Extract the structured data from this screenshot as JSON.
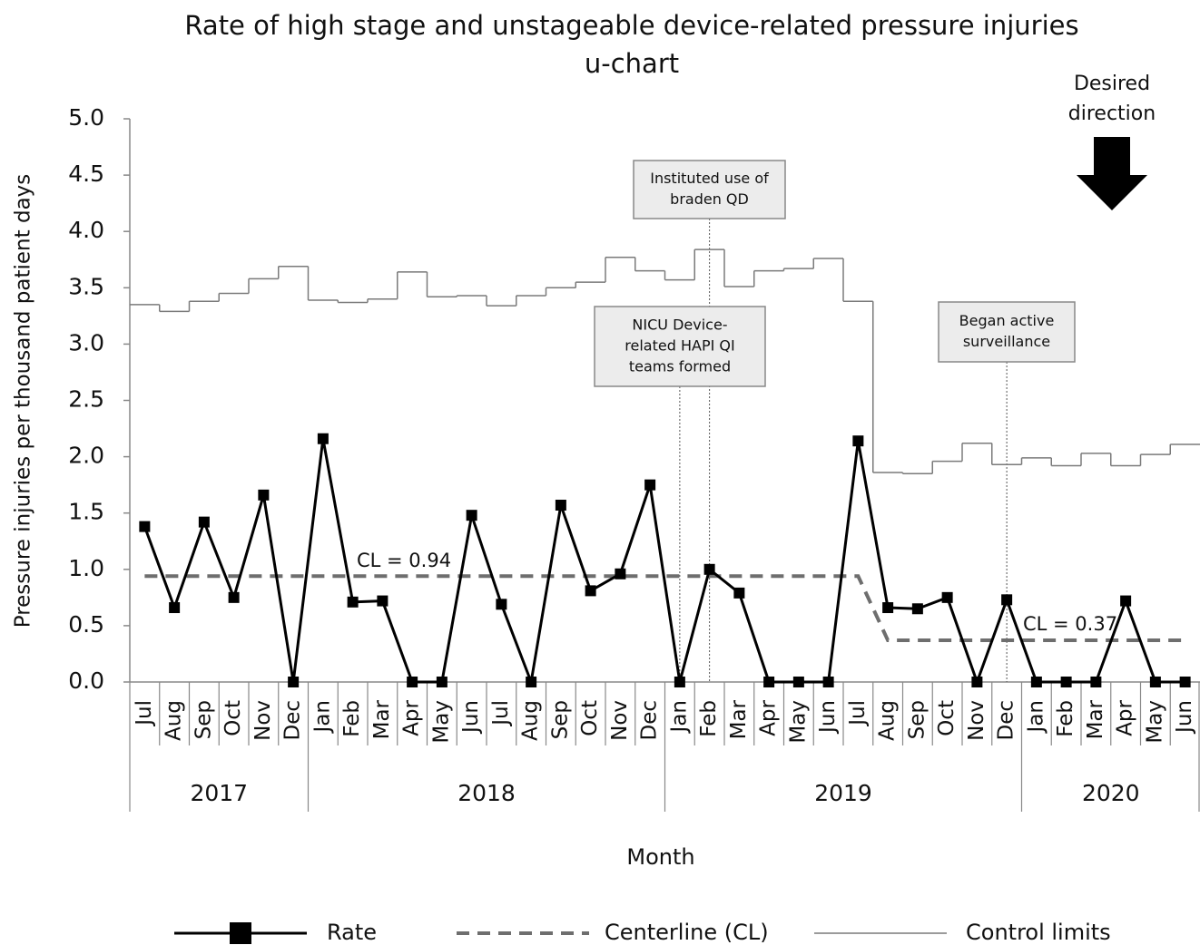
{
  "chart_data": {
    "type": "line",
    "title": "Rate of high stage and unstageable device-related pressure injuries",
    "subtitle": "u-chart",
    "y_label": "Pressure injuries per thousand patient days",
    "x_label": "Month",
    "categories": [
      "Jul",
      "Aug",
      "Sep",
      "Oct",
      "Nov",
      "Dec",
      "Jan",
      "Feb",
      "Mar",
      "Apr",
      "May",
      "Jun",
      "Jul",
      "Aug",
      "Sep",
      "Oct",
      "Nov",
      "Dec",
      "Jan",
      "Feb",
      "Mar",
      "Apr",
      "May",
      "Jun",
      "Jul",
      "Aug",
      "Sep",
      "Oct",
      "Nov",
      "Dec",
      "Jan",
      "Feb",
      "Mar",
      "Apr",
      "May",
      "Jun"
    ],
    "years": [
      "2017",
      "2018",
      "2019",
      "2020"
    ],
    "series": [
      {
        "name": "Rate",
        "color": "#000000",
        "values": [
          1.38,
          0.66,
          1.42,
          0.75,
          1.66,
          0,
          2.16,
          0.71,
          0.72,
          0,
          0,
          1.48,
          0.69,
          0,
          1.57,
          0.81,
          0.96,
          1.75,
          0,
          1.0,
          0.79,
          0,
          0,
          0,
          2.14,
          0.66,
          0.65,
          0.75,
          0,
          0.73,
          0,
          0,
          0,
          0.72,
          0,
          0
        ]
      },
      {
        "name": "Centerline (CL)",
        "color": "#6e6e6e",
        "values": [
          0.94,
          0.94,
          0.94,
          0.94,
          0.94,
          0.94,
          0.94,
          0.94,
          0.94,
          0.94,
          0.94,
          0.94,
          0.94,
          0.94,
          0.94,
          0.94,
          0.94,
          0.94,
          0.94,
          0.94,
          0.94,
          0.94,
          0.94,
          0.94,
          0.94,
          0.37,
          0.37,
          0.37,
          0.37,
          0.37,
          0.37,
          0.37,
          0.37,
          0.37,
          0.37,
          0.37
        ]
      },
      {
        "name": "Control limits",
        "color": "#7a7a7a",
        "values": [
          3.35,
          3.29,
          3.38,
          3.45,
          3.58,
          3.69,
          3.39,
          3.37,
          3.4,
          3.64,
          3.42,
          3.43,
          3.34,
          3.43,
          3.5,
          3.55,
          3.77,
          3.65,
          3.57,
          3.84,
          3.51,
          3.65,
          3.67,
          3.76,
          3.38,
          1.86,
          1.85,
          1.96,
          2.12,
          1.93,
          1.99,
          1.92,
          2.03,
          1.92,
          2.02,
          2.11
        ]
      }
    ],
    "ylim": [
      0,
      5
    ],
    "yticks": [
      {
        "value": 0,
        "label": "0.0"
      },
      0.5,
      {
        "value": 1,
        "label": "1.0"
      },
      1.5,
      {
        "value": 2,
        "label": "2.0"
      },
      2.5,
      {
        "value": 3,
        "label": "3.0"
      },
      3.5,
      {
        "value": 4,
        "label": "4.0"
      },
      4.5,
      {
        "value": 5,
        "label": "5.0"
      }
    ],
    "annotations": [
      {
        "lines": [
          "Instituted use of",
          "braden QD"
        ]
      },
      {
        "lines": [
          "NICU Device-",
          "related HAPI QI",
          "teams formed"
        ]
      },
      {
        "lines": [
          "Began active",
          "surveillance"
        ]
      }
    ],
    "cl_labels": [
      "CL = 0.94",
      "CL = 0.37"
    ],
    "direction_label": [
      "Desired",
      "direction"
    ]
  }
}
